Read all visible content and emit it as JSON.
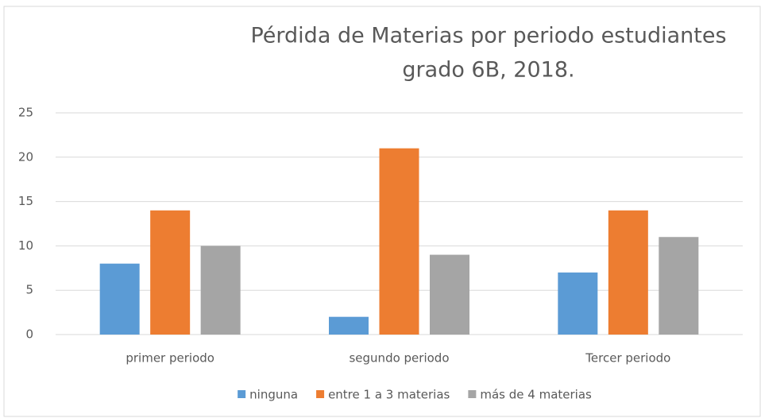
{
  "chart_data": {
    "type": "bar",
    "title": [
      "Pérdida de Materias por periodo estudiantes",
      "grado 6B, 2018."
    ],
    "categories": [
      "primer periodo",
      "segundo periodo",
      "Tercer periodo"
    ],
    "series": [
      {
        "name": "ninguna",
        "color": "#5b9bd5",
        "values": [
          8,
          2,
          7
        ]
      },
      {
        "name": "entre 1 a 3 materias",
        "color": "#ed7d31",
        "values": [
          14,
          21,
          14
        ]
      },
      {
        "name": "más de 4 materias",
        "color": "#a5a5a5",
        "values": [
          10,
          9,
          11
        ]
      }
    ],
    "ylim": [
      0,
      25
    ],
    "yticks": [
      0,
      5,
      10,
      15,
      20,
      25
    ],
    "grid": true,
    "legend": "bottom"
  }
}
